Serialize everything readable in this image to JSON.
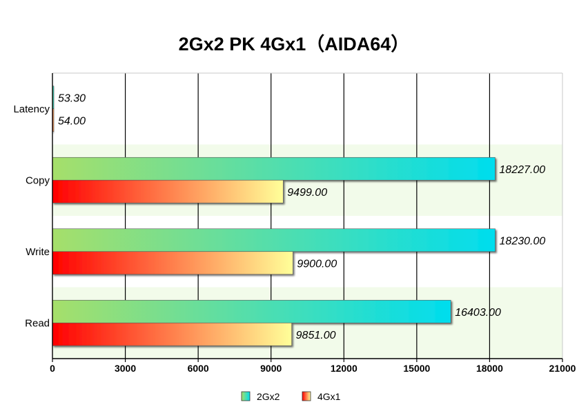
{
  "chart_data": {
    "type": "bar",
    "orientation": "horizontal",
    "title": "2Gx2 PK 4Gx1（AIDA64）",
    "categories": [
      "Latency",
      "Copy",
      "Write",
      "Read"
    ],
    "series": [
      {
        "name": "2Gx2",
        "values": [
          53.3,
          18227.0,
          18230.0,
          16403.0
        ],
        "labels": [
          "53.30",
          "18227.00",
          "18230.00",
          "16403.00"
        ],
        "colors": [
          "#a6df6a",
          "#00ddee"
        ]
      },
      {
        "name": "4Gx1",
        "values": [
          54.0,
          9499.0,
          9900.0,
          9851.0
        ],
        "labels": [
          "54.00",
          "9499.00",
          "9900.00",
          "9851.00"
        ],
        "colors": [
          "#ff0000",
          "#ffff99"
        ]
      }
    ],
    "xlim": [
      0,
      21000
    ],
    "xticks": [
      0,
      3000,
      6000,
      9000,
      12000,
      15000,
      18000,
      21000
    ],
    "xlabel": "",
    "ylabel": "",
    "grid": true,
    "legend_position": "bottom-center",
    "band_color": "#f2fbea"
  }
}
